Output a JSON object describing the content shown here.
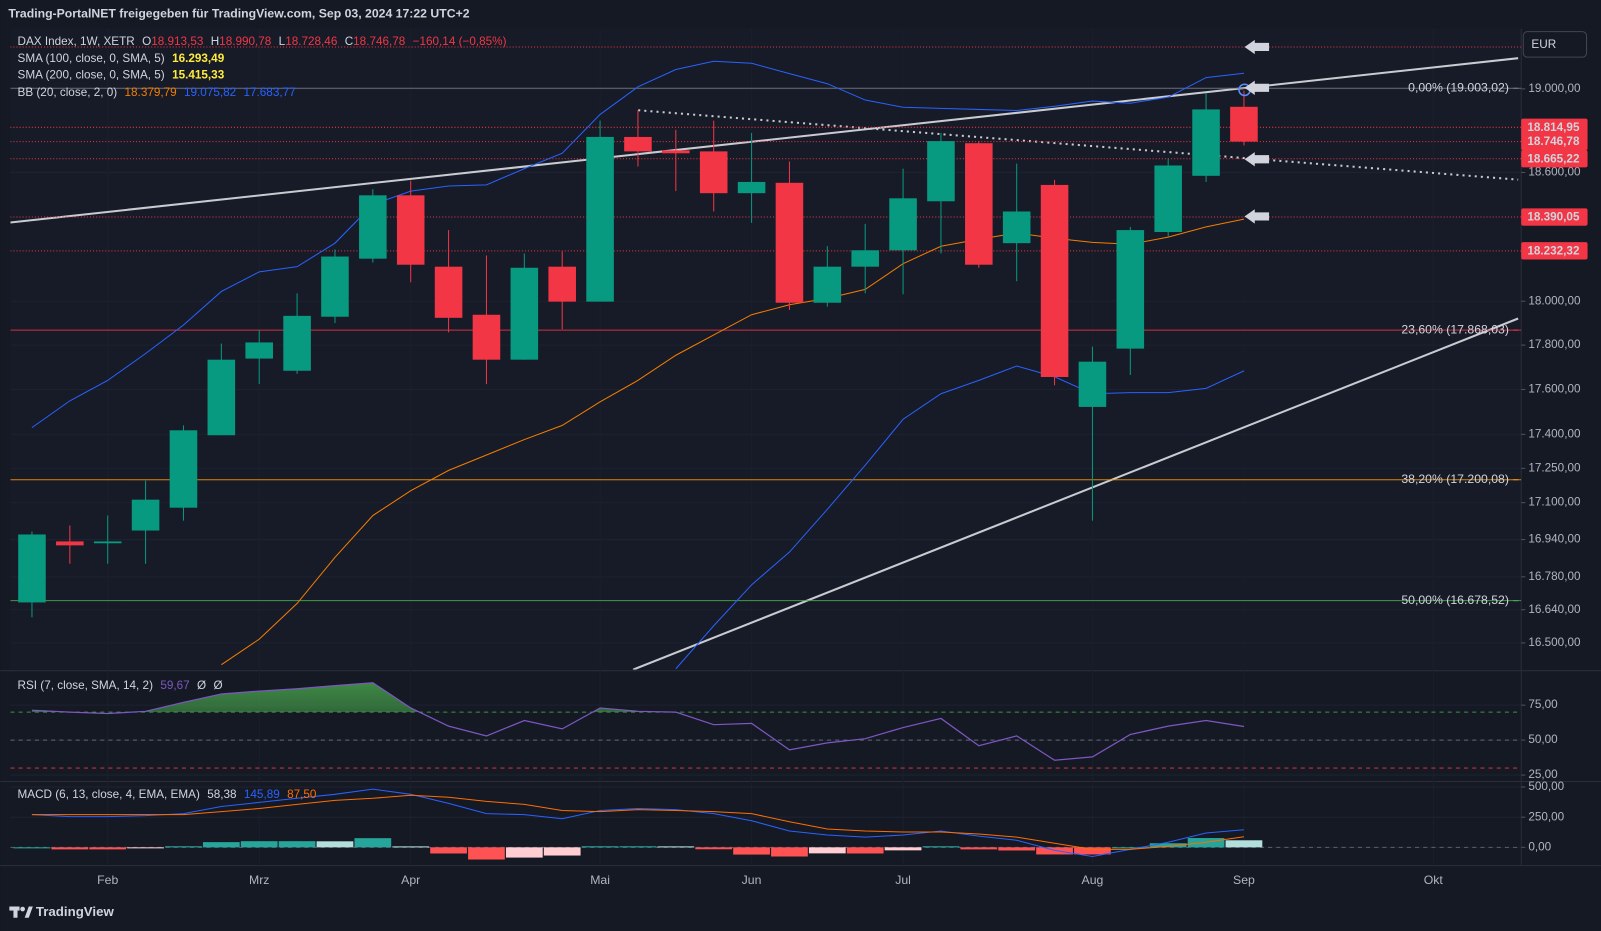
{
  "header": "Trading-PortalNET freigegeben für TradingView.com, Sep 03, 2024 17:22 UTC+2",
  "currency": "EUR",
  "footer": "TradingView",
  "legend": {
    "symbol": "DAX Index, 1W, XETR",
    "o": "O",
    "open": "18.913,53",
    "h": "H",
    "high": "18.990,78",
    "l": "L",
    "low": "18.728,46",
    "c": "C",
    "close": "18.746,78",
    "change": "−160,14 (−0,85%)",
    "sma100": "SMA (100, close, 0, SMA, 5)",
    "sma100_value": "16.293,49",
    "sma200": "SMA (200, close, 0, SMA, 5)",
    "sma200_value": "15.415,33",
    "bb": "BB (20, close, 2, 0)",
    "bb_basis": "18.379,79",
    "bb_upper": "19.075,82",
    "bb_lower": "17.683,77"
  },
  "chart_data": [
    {
      "type": "candlestick",
      "log": true,
      "up_color": "#089981",
      "down_color": "#f23645",
      "ylim": [
        16388,
        19294
      ],
      "xlim": [
        -0.57,
        39.24
      ],
      "yticks": [
        {
          "value": 19000,
          "label": "19.000,00"
        },
        {
          "value": 18600,
          "label": "18.600,00"
        },
        {
          "value": 18000,
          "label": "18.000,00"
        },
        {
          "value": 17800,
          "label": "17.800,00"
        },
        {
          "value": 17600,
          "label": "17.600,00"
        },
        {
          "value": 17400,
          "label": "17.400,00"
        },
        {
          "value": 17250,
          "label": "17.250,00"
        },
        {
          "value": 17100,
          "label": "17.100,00"
        },
        {
          "value": 16940,
          "label": "16.940,00"
        },
        {
          "value": 16780,
          "label": "16.780,00"
        },
        {
          "value": 16640,
          "label": "16.640,00"
        },
        {
          "value": 16500,
          "label": "16.500,00"
        }
      ],
      "xticks": [
        {
          "value": 2,
          "label": "Feb"
        },
        {
          "value": 6,
          "label": "Mrz"
        },
        {
          "value": 10,
          "label": "Apr"
        },
        {
          "value": 15,
          "label": "Mai"
        },
        {
          "value": 19,
          "label": "Jun"
        },
        {
          "value": 23,
          "label": "Jul"
        },
        {
          "value": 28,
          "label": "Aug"
        },
        {
          "value": 32,
          "label": "Sep"
        },
        {
          "value": 37,
          "label": "Okt"
        }
      ],
      "open": [
        16671,
        16932,
        16924,
        16979,
        17078,
        17396,
        17739,
        17684,
        17929,
        18196,
        18492,
        18159,
        17938,
        17734,
        18159,
        17998,
        18769,
        18705,
        18700,
        18502,
        18551,
        17993,
        18159,
        18235,
        18464,
        18739,
        18268,
        18541,
        17522,
        17784,
        18320,
        18584,
        18913.53
      ],
      "high": [
        16975,
        17001,
        17044,
        17196,
        17440,
        17807,
        17868,
        18036,
        18239,
        18521,
        18561,
        18329,
        18211,
        18220,
        18230,
        18847,
        18896,
        18803,
        18847,
        18788,
        18652,
        18254,
        18358,
        18618,
        18788,
        18749,
        18642,
        18565,
        17793,
        18344,
        18667,
        18980,
        18990.78
      ],
      "low": [
        16608,
        16836,
        16836,
        16836,
        17022,
        17396,
        17624,
        17670,
        17900,
        18178,
        18087,
        17858,
        17624,
        17734,
        17872,
        17998,
        18628,
        18512,
        18416,
        18363,
        17960,
        17975,
        18036,
        18032,
        18220,
        18154,
        18092,
        17619,
        17022,
        17665,
        18296,
        18555,
        18728.46
      ],
      "close": [
        16962,
        16915,
        16932,
        17113,
        17418,
        17734,
        17812,
        17933,
        18206,
        18492,
        18168,
        17924,
        17734,
        18154,
        17998,
        18769,
        18700,
        18691,
        18502,
        18555,
        17993,
        18159,
        18235,
        18478,
        18749,
        18168,
        18416,
        17656,
        17725,
        18329,
        18633,
        18901,
        18746.78
      ],
      "overlays": [
        {
          "color": "#2962ff",
          "values": [
            17430,
            17549,
            17641,
            17762,
            17891,
            18045,
            18135,
            18159,
            18268,
            18449,
            18512,
            18536,
            18541,
            18618,
            18691,
            18877,
            19010,
            19094,
            19134,
            19124,
            19074,
            19025,
            18946,
            18911,
            18906,
            18901,
            18896,
            18916,
            18941,
            18931,
            18960,
            19055,
            19075.82
          ]
        },
        {
          "color": "#f57c00",
          "values": [
            null,
            null,
            null,
            null,
            null,
            16409,
            16516,
            16667,
            16864,
            17044,
            17152,
            17241,
            17309,
            17377,
            17440,
            17545,
            17641,
            17754,
            17846,
            17938,
            17984,
            18013,
            18054,
            18173,
            18254,
            18286,
            18315,
            18291,
            18272,
            18263,
            18296,
            18344,
            18379.79
          ]
        },
        {
          "color": "#2962ff",
          "values": [
            null,
            null,
            null,
            null,
            null,
            null,
            null,
            null,
            null,
            null,
            null,
            null,
            null,
            null,
            null,
            null,
            null,
            16392,
            16572,
            16746,
            16886,
            17071,
            17264,
            17467,
            17581,
            17641,
            17705,
            17657,
            17581,
            17586,
            17586,
            17605,
            17683.77
          ]
        }
      ],
      "fib_levels": [
        {
          "value": 19003.02,
          "label": "0,00% (19.003,02)",
          "color": "#787b86"
        },
        {
          "value": 17868.03,
          "label": "23,60% (17.868,03)",
          "color": "#f23645"
        },
        {
          "value": 17200.08,
          "label": "38,20% (17.200,08)",
          "color": "#ff9800"
        },
        {
          "value": 16678.52,
          "label": "50,00% (16.678,52)",
          "color": "#4caf50"
        }
      ],
      "price_labels": [
        {
          "value": 18814.95,
          "label": "18.814,95"
        },
        {
          "value": 18746.78,
          "label": "18.746,78"
        },
        {
          "value": 18665.22,
          "label": "18.665,22"
        },
        {
          "value": 18390.05,
          "label": "18.390,05"
        },
        {
          "value": 18232.32,
          "label": "18.232,32"
        }
      ],
      "price_label_color": "#f23645"
    },
    {
      "type": "rsi",
      "title": "RSI (7, close, SMA, 14, 2)",
      "value_label": "59,67",
      "extras": [
        "Ø",
        "Ø"
      ],
      "color": "#7e57c2",
      "fill_color": "#4caf50",
      "ylim": [
        20.8,
        98.9
      ],
      "yticks": [
        {
          "value": 75,
          "label": "75,00"
        },
        {
          "value": 50,
          "label": "50,00"
        },
        {
          "value": 25,
          "label": "25,00"
        }
      ],
      "levels": [
        {
          "value": 70,
          "color": "#4caf50"
        },
        {
          "value": 50,
          "color": "#787b86"
        },
        {
          "value": 30,
          "color": "#f23645"
        }
      ],
      "values": [
        71.4,
        70,
        69,
        70.6,
        77,
        83,
        85,
        86.7,
        89,
        91,
        73,
        60,
        53,
        64,
        58,
        73,
        70.6,
        70,
        61,
        62,
        43,
        48,
        51,
        59,
        65.5,
        46,
        53,
        35.6,
        38,
        54,
        60,
        64,
        59.67
      ]
    },
    {
      "type": "macd",
      "title": "MACD (6, 13, close, 4, EMA, EMA)",
      "ylim": [
        -152,
        542
      ],
      "yticks": [
        {
          "value": 500,
          "label": "500,00"
        },
        {
          "value": 250,
          "label": "250,00"
        },
        {
          "value": 0,
          "label": "0,00"
        }
      ],
      "histogram": {
        "label": "58,38",
        "values": [
          0,
          -17,
          -17,
          -8,
          9,
          43,
          51,
          51,
          50,
          76,
          8,
          -51,
          -101,
          -85,
          -68,
          9,
          9,
          8,
          -16,
          -60,
          -76,
          -50,
          -51,
          -25,
          9,
          -17,
          -26,
          -59,
          -59,
          0,
          34,
          77,
          58.38
        ]
      },
      "series": [
        {
          "label": "145,89",
          "color": "#2962ff",
          "values": [
            271,
            254,
            254,
            263,
            280,
            339,
            373,
            407,
            440,
            483,
            440,
            364,
            280,
            271,
            237,
            305,
            322,
            313,
            280,
            220,
            136,
            102,
            85,
            102,
            136,
            93,
            59,
            -25,
            -76,
            -17,
            42,
            119,
            145.89
          ]
        },
        {
          "label": "87,50",
          "color": "#ff6d00",
          "values": [
            271,
            271,
            271,
            271,
            271,
            296,
            322,
            356,
            390,
            407,
            432,
            415,
            381,
            356,
            305,
            296,
            313,
            305,
            296,
            280,
            212,
            152,
            136,
            127,
            127,
            110,
            85,
            34,
            -17,
            -17,
            8,
            42,
            87.5
          ]
        }
      ]
    }
  ]
}
